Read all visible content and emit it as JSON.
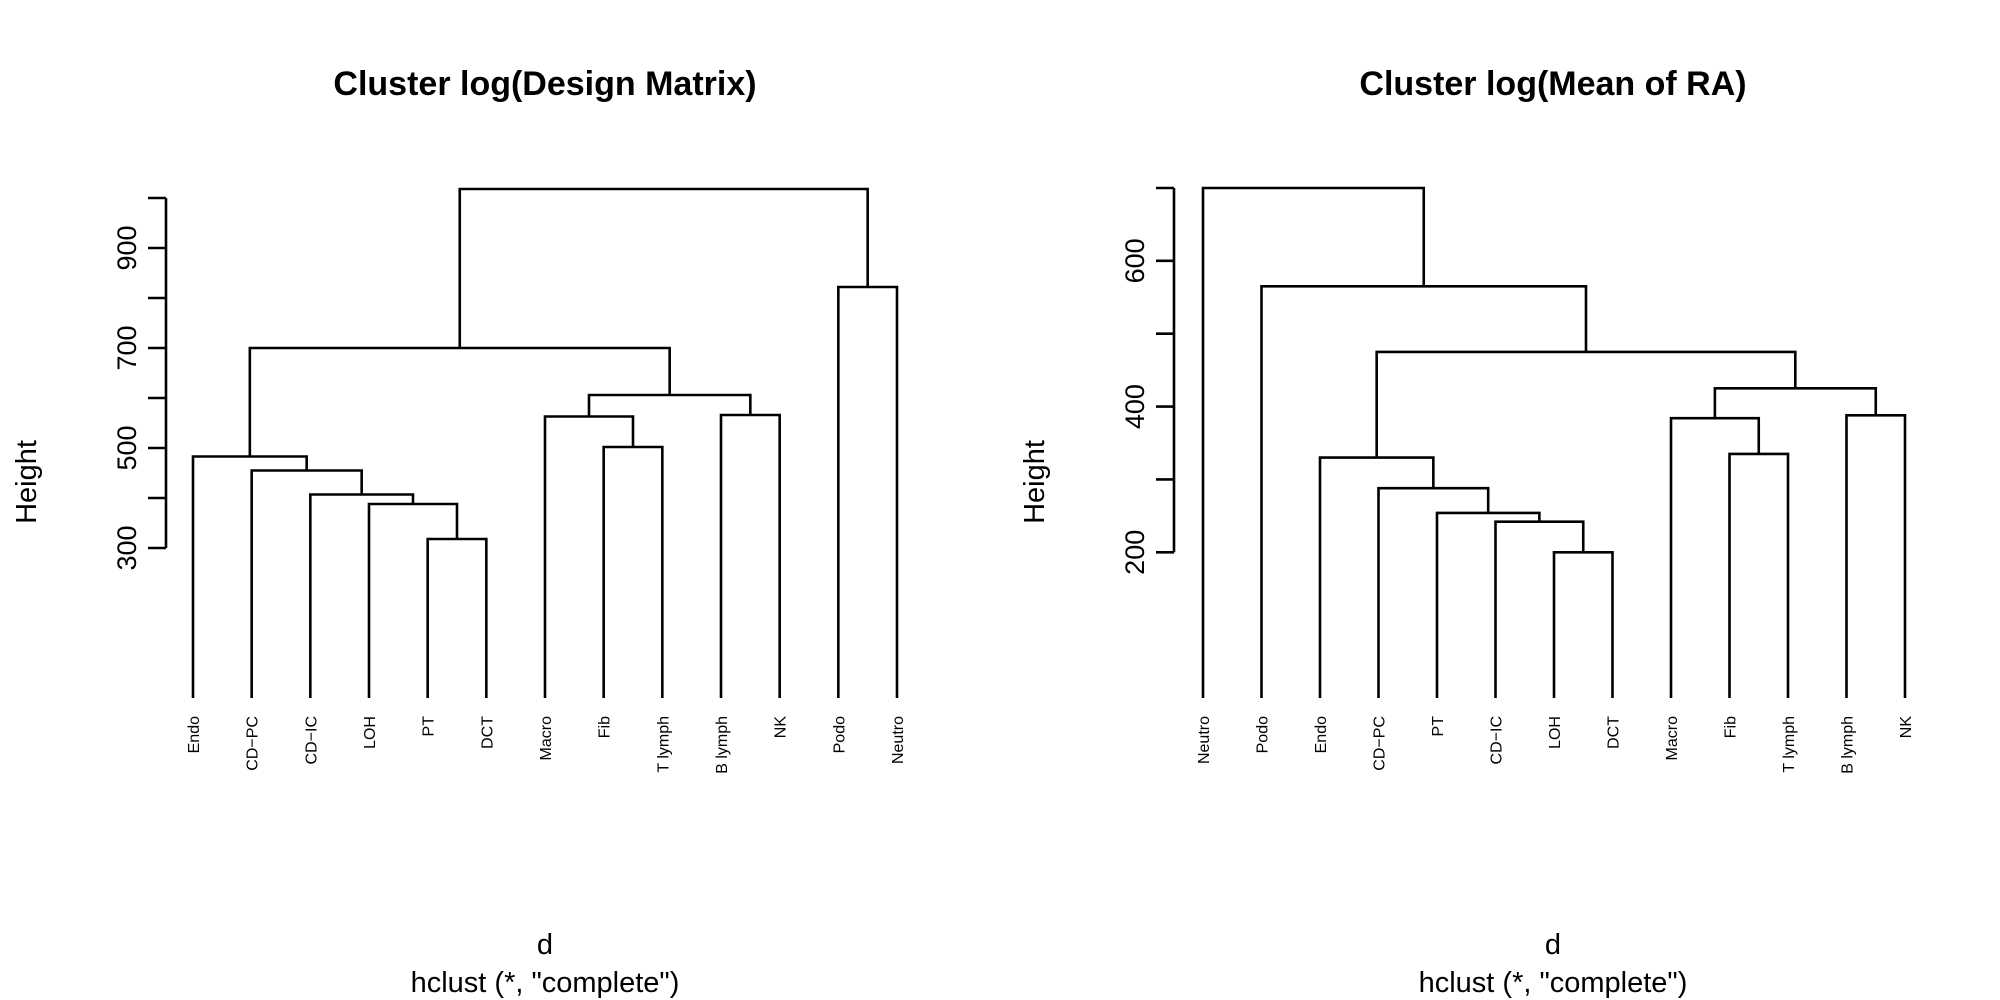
{
  "chart_data": [
    {
      "type": "dendrogram",
      "title": "Cluster log(Design Matrix)",
      "ylabel": "Height",
      "xlabel": "d",
      "sublabel": "hclust (*, \"complete\")",
      "yticks": [
        300,
        400,
        500,
        600,
        700,
        800,
        900,
        1000
      ],
      "ytick_labels": [
        "300",
        "",
        "500",
        "",
        "700",
        "",
        "900",
        ""
      ],
      "ylim": [
        0,
        1020
      ],
      "leaves": [
        "Endo",
        "CD−PC",
        "CD−IC",
        "LOH",
        "PT",
        "DCT",
        "Macro",
        "Fib",
        "T lymph",
        "B lymph",
        "NK",
        "Podo",
        "Neutro"
      ],
      "merges": [
        {
          "left": 4,
          "right": 5,
          "height": 318
        },
        {
          "left": 3,
          "right": 13,
          "height": 388
        },
        {
          "left": 2,
          "right": 14,
          "height": 407
        },
        {
          "left": 1,
          "right": 15,
          "height": 455
        },
        {
          "left": 0,
          "right": 16,
          "height": 483
        },
        {
          "left": 7,
          "right": 8,
          "height": 502
        },
        {
          "left": 6,
          "right": 18,
          "height": 563
        },
        {
          "left": 9,
          "right": 10,
          "height": 566
        },
        {
          "left": 19,
          "right": 20,
          "height": 606
        },
        {
          "left": 17,
          "right": 21,
          "height": 700
        },
        {
          "left": 11,
          "right": 12,
          "height": 822
        },
        {
          "left": 22,
          "right": 23,
          "height": 1018
        }
      ]
    },
    {
      "type": "dendrogram",
      "title": "Cluster log(Mean of RA)",
      "ylabel": "Height",
      "xlabel": "d",
      "sublabel": "hclust (*, \"complete\")",
      "yticks": [
        200,
        300,
        400,
        500,
        600,
        700
      ],
      "ytick_labels": [
        "200",
        "",
        "400",
        "",
        "600",
        ""
      ],
      "ylim": [
        0,
        700
      ],
      "leaves": [
        "Neutro",
        "Podo",
        "Endo",
        "CD−PC",
        "PT",
        "CD−IC",
        "LOH",
        "DCT",
        "Macro",
        "Fib",
        "T lymph",
        "B lymph",
        "NK"
      ],
      "merges": [
        {
          "left": 6,
          "right": 7,
          "height": 200
        },
        {
          "left": 5,
          "right": 13,
          "height": 242
        },
        {
          "left": 4,
          "right": 14,
          "height": 254
        },
        {
          "left": 3,
          "right": 15,
          "height": 288
        },
        {
          "left": 2,
          "right": 16,
          "height": 330
        },
        {
          "left": 9,
          "right": 10,
          "height": 335
        },
        {
          "left": 8,
          "right": 18,
          "height": 384
        },
        {
          "left": 11,
          "right": 12,
          "height": 388
        },
        {
          "left": 19,
          "right": 20,
          "height": 425
        },
        {
          "left": 17,
          "right": 21,
          "height": 475
        },
        {
          "left": 1,
          "right": 22,
          "height": 565
        },
        {
          "left": 0,
          "right": 23,
          "height": 700
        }
      ]
    }
  ]
}
